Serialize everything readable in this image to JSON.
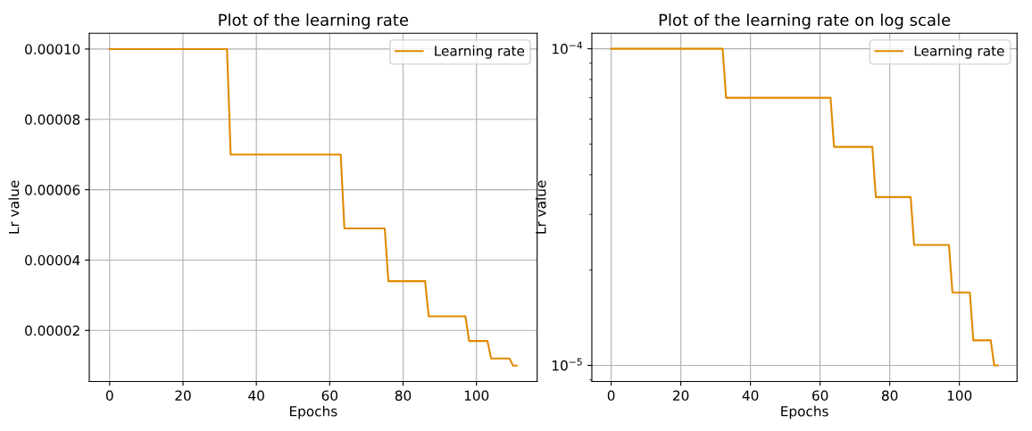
{
  "chart_data": [
    {
      "type": "line",
      "title": "Plot of the learning rate",
      "xlabel": "Epochs",
      "ylabel": "Lr value",
      "x": [
        0,
        32,
        33,
        63,
        64,
        75,
        76,
        86,
        87,
        97,
        98,
        103,
        104,
        109,
        110,
        111
      ],
      "series": [
        {
          "name": "Learning rate",
          "color": "#e08a00",
          "values": [
            0.0001,
            0.0001,
            7e-05,
            7e-05,
            4.9e-05,
            4.9e-05,
            3.4e-05,
            3.4e-05,
            2.4e-05,
            2.4e-05,
            1.7e-05,
            1.7e-05,
            1.2e-05,
            1.2e-05,
            1e-05,
            1e-05
          ]
        }
      ],
      "xlim": [
        -5.55,
        116.55
      ],
      "xticks": [
        0,
        20,
        40,
        60,
        80,
        100
      ],
      "ylim": [
        5.5e-06,
        0.0001045
      ],
      "yticks": [
        {
          "value": 2e-05,
          "label": "0.00002"
        },
        {
          "value": 4e-05,
          "label": "0.00004"
        },
        {
          "value": 6e-05,
          "label": "0.00006"
        },
        {
          "value": 8e-05,
          "label": "0.00008"
        },
        {
          "value": 0.0001,
          "label": "0.00010"
        }
      ],
      "grid": true,
      "legend": "top right"
    },
    {
      "type": "line",
      "title": "Plot of the learning rate on log scale",
      "xlabel": "Epochs",
      "ylabel": "Lr value",
      "x": [
        0,
        32,
        33,
        63,
        64,
        75,
        76,
        86,
        87,
        97,
        98,
        103,
        104,
        109,
        110,
        111
      ],
      "series": [
        {
          "name": "Learning rate",
          "color": "#e08a00",
          "values": [
            0.0001,
            0.0001,
            7e-05,
            7e-05,
            4.9e-05,
            4.9e-05,
            3.4e-05,
            3.4e-05,
            2.4e-05,
            2.4e-05,
            1.7e-05,
            1.7e-05,
            1.2e-05,
            1.2e-05,
            1e-05,
            1e-05
          ]
        }
      ],
      "log": "y",
      "xlim": [
        -5.55,
        116.55
      ],
      "xticks": [
        0,
        20,
        40,
        60,
        80,
        100
      ],
      "ylim": [
        8.9e-06,
        0.000112
      ],
      "yticks": [
        {
          "value": 1e-05,
          "label": "10$^{−5}$"
        },
        {
          "value": 0.0001,
          "label": "10$^{−4}$"
        }
      ],
      "grid": true,
      "legend": "top right"
    }
  ]
}
